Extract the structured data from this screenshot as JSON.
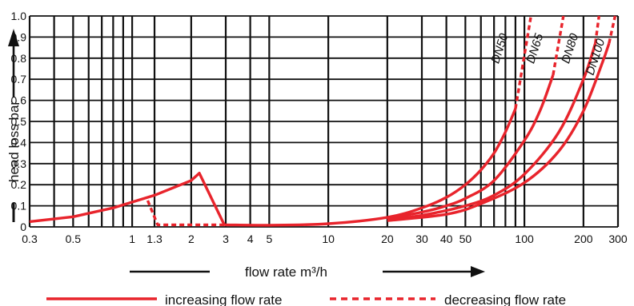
{
  "chart_data": {
    "type": "line",
    "xlabel": "flow rate m³/h",
    "ylabel": "head loss bar",
    "x_scale": "log",
    "xlim": [
      0.3,
      300
    ],
    "ylim": [
      0,
      1.0
    ],
    "grid": true,
    "x_ticks": [
      {
        "v": 0.3,
        "label": "0.3"
      },
      {
        "v": 0.4,
        "label": ""
      },
      {
        "v": 0.5,
        "label": "0.5"
      },
      {
        "v": 0.6,
        "label": ""
      },
      {
        "v": 0.7,
        "label": ""
      },
      {
        "v": 0.8,
        "label": ""
      },
      {
        "v": 0.9,
        "label": ""
      },
      {
        "v": 1,
        "label": "1"
      },
      {
        "v": 1.3,
        "label": "1.3"
      },
      {
        "v": 2,
        "label": "2"
      },
      {
        "v": 3,
        "label": "3"
      },
      {
        "v": 4,
        "label": "4"
      },
      {
        "v": 5,
        "label": "5"
      },
      {
        "v": 10,
        "label": "10"
      },
      {
        "v": 20,
        "label": "20"
      },
      {
        "v": 30,
        "label": "30"
      },
      {
        "v": 40,
        "label": "40"
      },
      {
        "v": 50,
        "label": "50"
      },
      {
        "v": 60,
        "label": ""
      },
      {
        "v": 70,
        "label": ""
      },
      {
        "v": 80,
        "label": ""
      },
      {
        "v": 90,
        "label": ""
      },
      {
        "v": 100,
        "label": "100"
      },
      {
        "v": 200,
        "label": "200"
      },
      {
        "v": 300,
        "label": "300"
      }
    ],
    "y_ticks": [
      {
        "v": 0,
        "label": "0"
      },
      {
        "v": 0.1,
        "label": "0.1"
      },
      {
        "v": 0.2,
        "label": "0.2"
      },
      {
        "v": 0.3,
        "label": "0.3"
      },
      {
        "v": 0.4,
        "label": "0.4"
      },
      {
        "v": 0.5,
        "label": "0.5"
      },
      {
        "v": 0.6,
        "label": "0.6"
      },
      {
        "v": 0.7,
        "label": "0.7"
      },
      {
        "v": 0.8,
        "label": "0.8"
      },
      {
        "v": 0.9,
        "label": "0.9"
      },
      {
        "v": 1.0,
        "label": "1.0"
      }
    ],
    "series": [
      {
        "name": "increasing flow rate",
        "style": "solid",
        "points": [
          [
            0.3,
            0.025
          ],
          [
            0.5,
            0.048
          ],
          [
            0.8,
            0.09
          ],
          [
            1.3,
            0.15
          ],
          [
            2.0,
            0.22
          ],
          [
            2.2,
            0.255
          ],
          [
            2.95,
            0.01
          ]
        ]
      },
      {
        "name": "decreasing flow rate",
        "style": "dashed",
        "points": [
          [
            1.2,
            0.125
          ],
          [
            1.35,
            0.01
          ],
          [
            2.95,
            0.01
          ]
        ]
      },
      {
        "style": "solid",
        "points": [
          [
            2.95,
            0.01
          ],
          [
            5,
            0.008
          ],
          [
            10,
            0.015
          ],
          [
            20,
            0.045
          ],
          [
            30,
            0.09
          ],
          [
            40,
            0.14
          ],
          [
            50,
            0.2
          ],
          [
            60,
            0.27
          ],
          [
            70,
            0.35
          ],
          [
            80,
            0.45
          ],
          [
            90,
            0.56
          ]
        ]
      },
      {
        "style": "solid",
        "points": [
          [
            20,
            0.04
          ],
          [
            30,
            0.07
          ],
          [
            40,
            0.1
          ],
          [
            50,
            0.135
          ],
          [
            70,
            0.22
          ],
          [
            100,
            0.41
          ],
          [
            120,
            0.55
          ],
          [
            140,
            0.72
          ]
        ]
      },
      {
        "style": "solid",
        "points": [
          [
            20,
            0.035
          ],
          [
            30,
            0.055
          ],
          [
            50,
            0.1
          ],
          [
            70,
            0.15
          ],
          [
            100,
            0.25
          ],
          [
            150,
            0.45
          ],
          [
            200,
            0.7
          ],
          [
            230,
            0.87
          ]
        ]
      },
      {
        "style": "solid",
        "points": [
          [
            20,
            0.03
          ],
          [
            40,
            0.06
          ],
          [
            60,
            0.11
          ],
          [
            100,
            0.21
          ],
          [
            150,
            0.36
          ],
          [
            200,
            0.55
          ],
          [
            250,
            0.78
          ],
          [
            270,
            0.87
          ]
        ]
      },
      {
        "style": "dashed",
        "points": [
          [
            90,
            0.56
          ],
          [
            108,
            1.0
          ]
        ]
      },
      {
        "style": "dashed",
        "points": [
          [
            140,
            0.72
          ],
          [
            158,
            1.0
          ]
        ]
      },
      {
        "style": "dashed",
        "points": [
          [
            230,
            0.87
          ],
          [
            240,
            1.0
          ]
        ]
      },
      {
        "style": "dashed",
        "points": [
          [
            270,
            0.87
          ],
          [
            290,
            1.0
          ]
        ]
      }
    ],
    "annotations": [
      {
        "text": "DN50",
        "x": 78,
        "y": 0.84
      },
      {
        "text": "DN65",
        "x": 118,
        "y": 0.84
      },
      {
        "text": "DN80",
        "x": 178,
        "y": 0.84
      },
      {
        "text": "DN100",
        "x": 240,
        "y": 0.8
      }
    ],
    "legend": {
      "placement": "bottom",
      "entries": [
        {
          "label": "increasing flow rate",
          "style": "solid"
        },
        {
          "label": "decreasing flow rate",
          "style": "dashed"
        }
      ]
    },
    "colors": {
      "curve": "#e8242c",
      "grid": "#111111",
      "text": "#111111"
    }
  }
}
